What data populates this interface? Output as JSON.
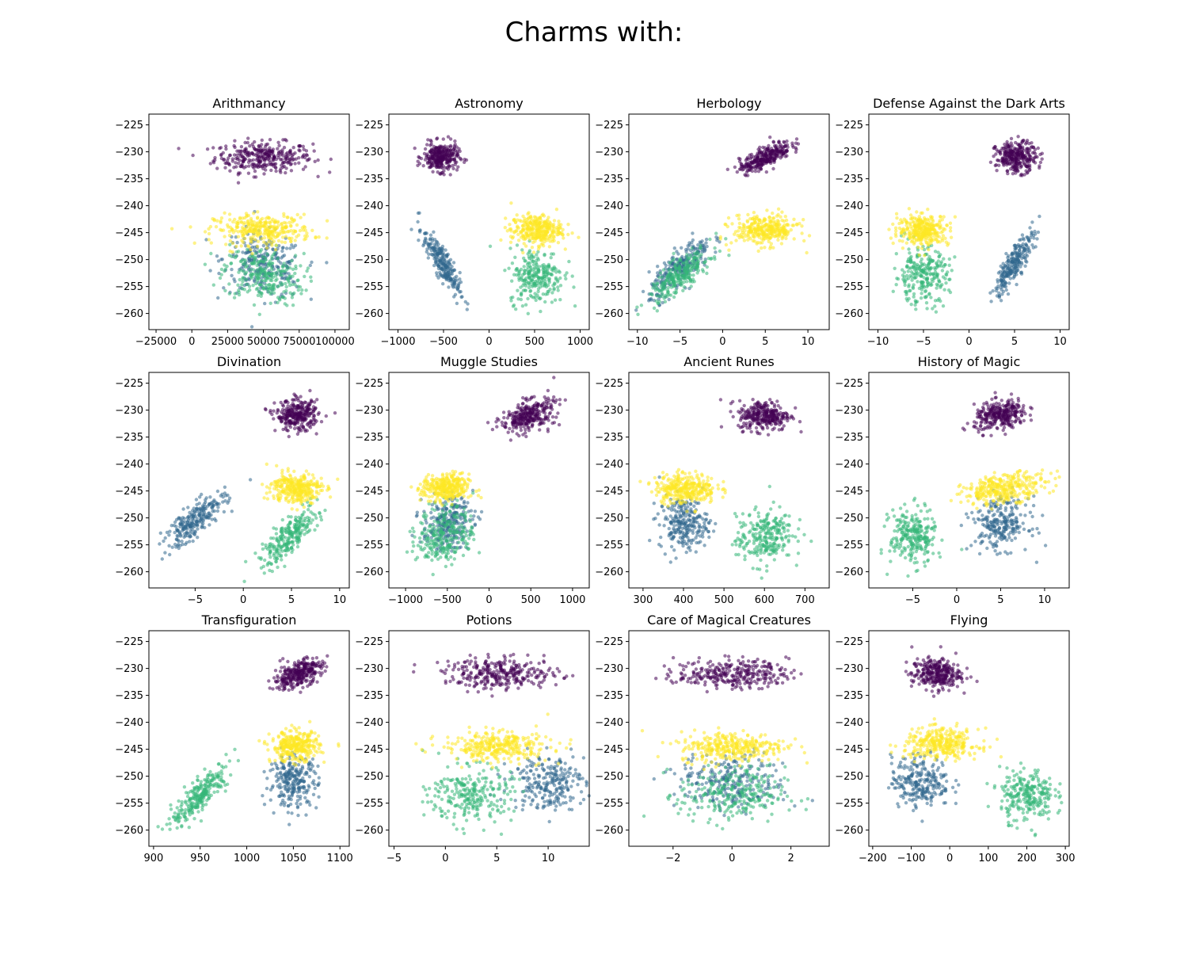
{
  "figure": {
    "suptitle": "Charms with:"
  },
  "legend_note": "",
  "house_colors": {
    "house_0": "#440154",
    "house_1": "#31688e",
    "house_2": "#35b779",
    "house_3": "#fde725"
  },
  "chart_data": [
    {
      "type": "scatter",
      "title": "Arithmancy",
      "xlabel": "",
      "ylabel": "",
      "xlim": [
        -30000,
        110000
      ],
      "ylim": [
        -263,
        -223
      ],
      "xticks": [
        -25000,
        0,
        25000,
        50000,
        75000,
        100000
      ],
      "xtick_labels": [
        "−25000",
        "0",
        "25000",
        "50000",
        "75000",
        "100000"
      ],
      "yticks": [
        -225,
        -230,
        -235,
        -240,
        -245,
        -250,
        -255,
        -260
      ],
      "ytick_labels": [
        "−225",
        "−230",
        "−235",
        "−240",
        "−245",
        "−250",
        "−255",
        "−260"
      ],
      "series": [
        {
          "color": "#440154",
          "x_center": 50000,
          "y_center": -231,
          "x_spread": 17000,
          "y_spread": 1.4,
          "corr": 0,
          "count": 320
        },
        {
          "color": "#31688e",
          "x_center": 50000,
          "y_center": -251,
          "x_spread": 14000,
          "y_spread": 3,
          "corr": -0.2,
          "count": 250
        },
        {
          "color": "#35b779",
          "x_center": 50000,
          "y_center": -253,
          "x_spread": 14000,
          "y_spread": 2.6,
          "corr": -0.2,
          "count": 260
        },
        {
          "color": "#fde725",
          "x_center": 50000,
          "y_center": -244.5,
          "x_spread": 17000,
          "y_spread": 1.4,
          "corr": 0,
          "count": 320
        }
      ]
    },
    {
      "type": "scatter",
      "title": "Astronomy",
      "xlabel": "",
      "ylabel": "",
      "xlim": [
        -1100,
        1100
      ],
      "ylim": [
        -263,
        -223
      ],
      "xticks": [
        -1000,
        -500,
        0,
        500,
        1000
      ],
      "xtick_labels": [
        "−1000",
        "−500",
        "0",
        "500",
        "1000"
      ],
      "yticks": [
        -225,
        -230,
        -235,
        -240,
        -245,
        -250,
        -255,
        -260
      ],
      "ytick_labels": [
        "−225",
        "−230",
        "−235",
        "−240",
        "−245",
        "−250",
        "−255",
        "−260"
      ],
      "series": [
        {
          "color": "#440154",
          "x_center": -530,
          "y_center": -231,
          "x_spread": 95,
          "y_spread": 1.3,
          "corr": 0,
          "count": 300
        },
        {
          "color": "#31688e",
          "x_center": -520,
          "y_center": -250.5,
          "x_spread": 100,
          "y_spread": 3,
          "corr": -0.85,
          "count": 250
        },
        {
          "color": "#35b779",
          "x_center": 520,
          "y_center": -253,
          "x_spread": 150,
          "y_spread": 2.6,
          "corr": 0,
          "count": 260
        },
        {
          "color": "#fde725",
          "x_center": 520,
          "y_center": -244.5,
          "x_spread": 140,
          "y_spread": 1.4,
          "corr": 0,
          "count": 320
        }
      ]
    },
    {
      "type": "scatter",
      "title": "Herbology",
      "xlabel": "",
      "ylabel": "",
      "xlim": [
        -11,
        12.5
      ],
      "ylim": [
        -263,
        -223
      ],
      "xticks": [
        -10,
        -5,
        0,
        5,
        10
      ],
      "xtick_labels": [
        "−10",
        "−5",
        "0",
        "5",
        "10"
      ],
      "yticks": [
        -225,
        -230,
        -235,
        -240,
        -245,
        -250,
        -255,
        -260
      ],
      "ytick_labels": [
        "−225",
        "−230",
        "−235",
        "−240",
        "−245",
        "−250",
        "−255",
        "−260"
      ],
      "series": [
        {
          "color": "#440154",
          "x_center": 5,
          "y_center": -231,
          "x_spread": 1.5,
          "y_spread": 1.4,
          "corr": 0.75,
          "count": 300
        },
        {
          "color": "#31688e",
          "x_center": -5,
          "y_center": -251.5,
          "x_spread": 1.8,
          "y_spread": 2.8,
          "corr": 0.8,
          "count": 250
        },
        {
          "color": "#35b779",
          "x_center": -5,
          "y_center": -253,
          "x_spread": 1.8,
          "y_spread": 2.5,
          "corr": 0.8,
          "count": 260
        },
        {
          "color": "#fde725",
          "x_center": 5,
          "y_center": -244.5,
          "x_spread": 1.9,
          "y_spread": 1.4,
          "corr": 0,
          "count": 320
        }
      ]
    },
    {
      "type": "scatter",
      "title": "Defense Against the Dark Arts",
      "xlabel": "",
      "ylabel": "",
      "xlim": [
        -11,
        11
      ],
      "ylim": [
        -263,
        -223
      ],
      "xticks": [
        -10,
        -5,
        0,
        5,
        10
      ],
      "xtick_labels": [
        "−10",
        "−5",
        "0",
        "5",
        "10"
      ],
      "yticks": [
        -225,
        -230,
        -235,
        -240,
        -245,
        -250,
        -255,
        -260
      ],
      "ytick_labels": [
        "−225",
        "−230",
        "−235",
        "−240",
        "−245",
        "−250",
        "−255",
        "−260"
      ],
      "series": [
        {
          "color": "#440154",
          "x_center": 5.2,
          "y_center": -231,
          "x_spread": 1.1,
          "y_spread": 1.4,
          "corr": 0,
          "count": 300
        },
        {
          "color": "#31688e",
          "x_center": 5,
          "y_center": -250.5,
          "x_spread": 1.1,
          "y_spread": 3,
          "corr": 0.85,
          "count": 250
        },
        {
          "color": "#35b779",
          "x_center": -5.2,
          "y_center": -253,
          "x_spread": 1.5,
          "y_spread": 2.6,
          "corr": 0,
          "count": 260
        },
        {
          "color": "#fde725",
          "x_center": -5,
          "y_center": -244.5,
          "x_spread": 1.4,
          "y_spread": 1.4,
          "corr": 0,
          "count": 320
        }
      ]
    },
    {
      "type": "scatter",
      "title": "Divination",
      "xlabel": "",
      "ylabel": "",
      "xlim": [
        -9.8,
        11
      ],
      "ylim": [
        -263,
        -223
      ],
      "xticks": [
        -5,
        0,
        5,
        10
      ],
      "xtick_labels": [
        "−5",
        "0",
        "5",
        "10"
      ],
      "yticks": [
        -225,
        -230,
        -235,
        -240,
        -245,
        -250,
        -255,
        -260
      ],
      "ytick_labels": [
        "−225",
        "−230",
        "−235",
        "−240",
        "−245",
        "−250",
        "−255",
        "−260"
      ],
      "series": [
        {
          "color": "#440154",
          "x_center": 5.6,
          "y_center": -231,
          "x_spread": 1.1,
          "y_spread": 1.4,
          "corr": 0,
          "count": 300
        },
        {
          "color": "#31688e",
          "x_center": -5,
          "y_center": -250.5,
          "x_spread": 1.6,
          "y_spread": 2.6,
          "corr": 0.8,
          "count": 250
        },
        {
          "color": "#35b779",
          "x_center": 4.8,
          "y_center": -253.5,
          "x_spread": 1.5,
          "y_spread": 2.7,
          "corr": 0.8,
          "count": 260
        },
        {
          "color": "#fde725",
          "x_center": 5.5,
          "y_center": -244.5,
          "x_spread": 1.3,
          "y_spread": 1.4,
          "corr": 0,
          "count": 320
        }
      ]
    },
    {
      "type": "scatter",
      "title": "Muggle Studies",
      "xlabel": "",
      "ylabel": "",
      "xlim": [
        -1200,
        1200
      ],
      "ylim": [
        -263,
        -223
      ],
      "xticks": [
        -1000,
        -500,
        0,
        500,
        1000
      ],
      "xtick_labels": [
        "−1000",
        "−500",
        "0",
        "500",
        "1000"
      ],
      "yticks": [
        -225,
        -230,
        -235,
        -240,
        -245,
        -250,
        -255,
        -260
      ],
      "ytick_labels": [
        "−225",
        "−230",
        "−235",
        "−240",
        "−245",
        "−250",
        "−255",
        "−260"
      ],
      "series": [
        {
          "color": "#440154",
          "x_center": 470,
          "y_center": -231,
          "x_spread": 160,
          "y_spread": 1.5,
          "corr": 0.4,
          "count": 300
        },
        {
          "color": "#31688e",
          "x_center": -500,
          "y_center": -251,
          "x_spread": 150,
          "y_spread": 2.4,
          "corr": 0.2,
          "count": 250
        },
        {
          "color": "#35b779",
          "x_center": -520,
          "y_center": -253,
          "x_spread": 170,
          "y_spread": 2.8,
          "corr": 0.2,
          "count": 260
        },
        {
          "color": "#fde725",
          "x_center": -520,
          "y_center": -244.5,
          "x_spread": 140,
          "y_spread": 1.3,
          "corr": 0,
          "count": 320
        }
      ]
    },
    {
      "type": "scatter",
      "title": "Ancient Runes",
      "xlabel": "",
      "ylabel": "",
      "xlim": [
        265,
        760
      ],
      "ylim": [
        -263,
        -223
      ],
      "xticks": [
        300,
        400,
        500,
        600,
        700
      ],
      "xtick_labels": [
        "300",
        "400",
        "500",
        "600",
        "700"
      ],
      "yticks": [
        -225,
        -230,
        -235,
        -240,
        -245,
        -250,
        -255,
        -260
      ],
      "ytick_labels": [
        "−225",
        "−230",
        "−235",
        "−240",
        "−245",
        "−250",
        "−255",
        "−260"
      ],
      "series": [
        {
          "color": "#440154",
          "x_center": 600,
          "y_center": -231,
          "x_spread": 32,
          "y_spread": 1.4,
          "corr": 0,
          "count": 300
        },
        {
          "color": "#31688e",
          "x_center": 400,
          "y_center": -251,
          "x_spread": 30,
          "y_spread": 2.4,
          "corr": 0,
          "count": 250
        },
        {
          "color": "#35b779",
          "x_center": 600,
          "y_center": -253.5,
          "x_spread": 35,
          "y_spread": 2.6,
          "corr": 0.2,
          "count": 260
        },
        {
          "color": "#fde725",
          "x_center": 405,
          "y_center": -244.5,
          "x_spread": 38,
          "y_spread": 1.4,
          "corr": 0,
          "count": 320
        }
      ]
    },
    {
      "type": "scatter",
      "title": "History of Magic",
      "xlabel": "",
      "ylabel": "",
      "xlim": [
        -10,
        12.8
      ],
      "ylim": [
        -263,
        -223
      ],
      "xticks": [
        -5,
        0,
        5,
        10
      ],
      "xtick_labels": [
        "−5",
        "0",
        "5",
        "10"
      ],
      "yticks": [
        -225,
        -230,
        -235,
        -240,
        -245,
        -250,
        -255,
        -260
      ],
      "ytick_labels": [
        "−225",
        "−230",
        "−235",
        "−240",
        "−245",
        "−250",
        "−255",
        "−260"
      ],
      "series": [
        {
          "color": "#440154",
          "x_center": 5,
          "y_center": -231,
          "x_spread": 1.5,
          "y_spread": 1.4,
          "corr": 0.3,
          "count": 300
        },
        {
          "color": "#31688e",
          "x_center": 5,
          "y_center": -251,
          "x_spread": 1.6,
          "y_spread": 2.4,
          "corr": 0,
          "count": 250
        },
        {
          "color": "#35b779",
          "x_center": -5,
          "y_center": -253.5,
          "x_spread": 1.3,
          "y_spread": 2.6,
          "corr": 0,
          "count": 260
        },
        {
          "color": "#fde725",
          "x_center": 5.5,
          "y_center": -244.5,
          "x_spread": 2.4,
          "y_spread": 1.4,
          "corr": 0.4,
          "count": 320
        }
      ]
    },
    {
      "type": "scatter",
      "title": "Transfiguration",
      "xlabel": "",
      "ylabel": "",
      "xlim": [
        895,
        1110
      ],
      "ylim": [
        -263,
        -223
      ],
      "xticks": [
        900,
        950,
        1000,
        1050,
        1100
      ],
      "xtick_labels": [
        "900",
        "950",
        "1000",
        "1050",
        "1100"
      ],
      "yticks": [
        -225,
        -230,
        -235,
        -240,
        -245,
        -250,
        -255,
        -260
      ],
      "ytick_labels": [
        "−225",
        "−230",
        "−235",
        "−240",
        "−245",
        "−250",
        "−255",
        "−260"
      ],
      "series": [
        {
          "color": "#440154",
          "x_center": 1055,
          "y_center": -231,
          "x_spread": 13,
          "y_spread": 1.4,
          "corr": 0.5,
          "count": 300
        },
        {
          "color": "#31688e",
          "x_center": 1050,
          "y_center": -251,
          "x_spread": 13,
          "y_spread": 2.4,
          "corr": 0,
          "count": 250
        },
        {
          "color": "#35b779",
          "x_center": 950,
          "y_center": -253.5,
          "x_spread": 15,
          "y_spread": 2.8,
          "corr": 0.85,
          "count": 260
        },
        {
          "color": "#fde725",
          "x_center": 1052,
          "y_center": -244.5,
          "x_spread": 13,
          "y_spread": 1.4,
          "corr": 0,
          "count": 320
        }
      ]
    },
    {
      "type": "scatter",
      "title": "Potions",
      "xlabel": "",
      "ylabel": "",
      "xlim": [
        -5.5,
        14
      ],
      "ylim": [
        -263,
        -223
      ],
      "xticks": [
        -5,
        0,
        5,
        10
      ],
      "xtick_labels": [
        "−5",
        "0",
        "5",
        "10"
      ],
      "yticks": [
        -225,
        -230,
        -235,
        -240,
        -245,
        -250,
        -255,
        -260
      ],
      "ytick_labels": [
        "−225",
        "−230",
        "−235",
        "−240",
        "−245",
        "−250",
        "−255",
        "−260"
      ],
      "series": [
        {
          "color": "#440154",
          "x_center": 5.5,
          "y_center": -231,
          "x_spread": 2.8,
          "y_spread": 1.4,
          "corr": 0,
          "count": 300
        },
        {
          "color": "#31688e",
          "x_center": 10,
          "y_center": -251,
          "x_spread": 1.8,
          "y_spread": 2.6,
          "corr": 0,
          "count": 250
        },
        {
          "color": "#35b779",
          "x_center": 2.5,
          "y_center": -253.5,
          "x_spread": 2,
          "y_spread": 2.6,
          "corr": 0,
          "count": 260
        },
        {
          "color": "#fde725",
          "x_center": 5,
          "y_center": -244.5,
          "x_spread": 2.6,
          "y_spread": 1.4,
          "corr": 0,
          "count": 320
        }
      ]
    },
    {
      "type": "scatter",
      "title": "Care of Magical Creatures",
      "xlabel": "",
      "ylabel": "",
      "xlim": [
        -3.5,
        3.3
      ],
      "ylim": [
        -263,
        -223
      ],
      "xticks": [
        -2,
        0,
        2
      ],
      "xtick_labels": [
        "−2",
        "0",
        "2"
      ],
      "yticks": [
        -225,
        -230,
        -235,
        -240,
        -245,
        -250,
        -255,
        -260
      ],
      "ytick_labels": [
        "−225",
        "−230",
        "−235",
        "−240",
        "−245",
        "−250",
        "−255",
        "−260"
      ],
      "series": [
        {
          "color": "#440154",
          "x_center": 0,
          "y_center": -231,
          "x_spread": 0.95,
          "y_spread": 1.3,
          "corr": 0,
          "count": 300
        },
        {
          "color": "#31688e",
          "x_center": 0,
          "y_center": -251,
          "x_spread": 0.9,
          "y_spread": 2.6,
          "corr": 0,
          "count": 250
        },
        {
          "color": "#35b779",
          "x_center": 0,
          "y_center": -253.5,
          "x_spread": 0.9,
          "y_spread": 2.6,
          "corr": 0,
          "count": 260
        },
        {
          "color": "#fde725",
          "x_center": 0,
          "y_center": -244.5,
          "x_spread": 0.9,
          "y_spread": 1.4,
          "corr": 0,
          "count": 320
        }
      ]
    },
    {
      "type": "scatter",
      "title": "Flying",
      "xlabel": "",
      "ylabel": "",
      "xlim": [
        -210,
        310
      ],
      "ylim": [
        -263,
        -223
      ],
      "xticks": [
        -200,
        -100,
        0,
        100,
        200,
        300
      ],
      "xtick_labels": [
        "−200",
        "−100",
        "0",
        "100",
        "200",
        "300"
      ],
      "yticks": [
        -225,
        -230,
        -235,
        -240,
        -245,
        -250,
        -255,
        -260
      ],
      "ytick_labels": [
        "−225",
        "−230",
        "−235",
        "−240",
        "−245",
        "−250",
        "−255",
        "−260"
      ],
      "series": [
        {
          "color": "#440154",
          "x_center": -35,
          "y_center": -231,
          "x_spread": 32,
          "y_spread": 1.4,
          "corr": 0,
          "count": 300
        },
        {
          "color": "#31688e",
          "x_center": -75,
          "y_center": -251,
          "x_spread": 38,
          "y_spread": 2.4,
          "corr": 0,
          "count": 250
        },
        {
          "color": "#35b779",
          "x_center": 200,
          "y_center": -253.5,
          "x_spread": 35,
          "y_spread": 2.4,
          "corr": 0,
          "count": 260
        },
        {
          "color": "#fde725",
          "x_center": -20,
          "y_center": -244,
          "x_spread": 48,
          "y_spread": 1.4,
          "corr": 0,
          "count": 320
        }
      ]
    }
  ]
}
